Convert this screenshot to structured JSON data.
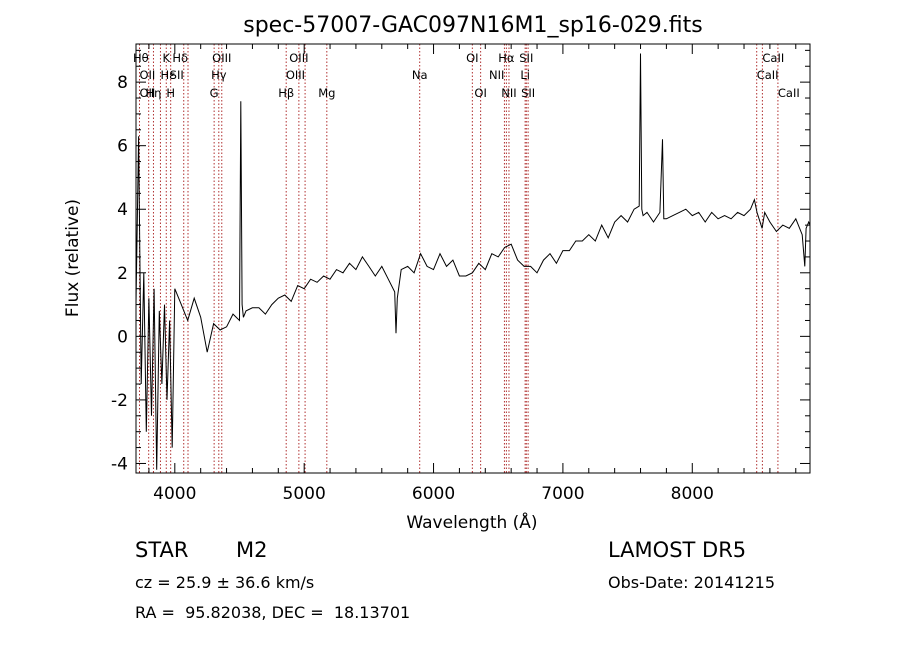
{
  "chart_data": {
    "type": "line",
    "title": "spec-57007-GAC097N16M1_sp16-029.fits",
    "xlabel": "Wavelength (Å)",
    "ylabel": "Flux (relative)",
    "xlim": [
      3700,
      8910
    ],
    "ylim": [
      -4.3,
      9.2
    ],
    "xticks": [
      4000,
      5000,
      6000,
      7000,
      8000
    ],
    "yticks": [
      -4,
      -2,
      0,
      2,
      4,
      6,
      8
    ],
    "grid": false,
    "series": [
      {
        "x": [
          3700,
          3720,
          3740,
          3760,
          3780,
          3800,
          3820,
          3840,
          3860,
          3880,
          3900,
          3920,
          3940,
          3960,
          3980,
          4000,
          4050,
          4100,
          4150,
          4200,
          4250,
          4300,
          4350,
          4400,
          4450,
          4500,
          4510,
          4520,
          4530,
          4550,
          4600,
          4650,
          4700,
          4750,
          4800,
          4850,
          4900,
          4950,
          5000,
          5050,
          5100,
          5150,
          5200,
          5250,
          5300,
          5350,
          5400,
          5450,
          5500,
          5550,
          5600,
          5650,
          5700,
          5710,
          5720,
          5750,
          5800,
          5850,
          5900,
          5950,
          6000,
          6050,
          6100,
          6150,
          6200,
          6250,
          6300,
          6350,
          6400,
          6450,
          6500,
          6550,
          6600,
          6650,
          6700,
          6750,
          6800,
          6850,
          6900,
          6950,
          7000,
          7050,
          7100,
          7150,
          7200,
          7250,
          7300,
          7350,
          7400,
          7450,
          7500,
          7550,
          7590,
          7600,
          7610,
          7620,
          7650,
          7700,
          7750,
          7770,
          7780,
          7800,
          7850,
          7900,
          7950,
          8000,
          8050,
          8100,
          8150,
          8200,
          8250,
          8300,
          8350,
          8400,
          8450,
          8480,
          8500,
          8540,
          8560,
          8600,
          8650,
          8700,
          8750,
          8800,
          8850,
          8870,
          8880,
          8900,
          8910
        ],
        "values": [
          1.0,
          6.3,
          -1.5,
          2.0,
          -3.0,
          1.2,
          -2.5,
          1.5,
          -4.2,
          0.8,
          -1.5,
          1.0,
          -2.0,
          0.5,
          -3.5,
          1.5,
          1.0,
          0.5,
          1.2,
          0.6,
          -0.5,
          0.4,
          0.2,
          0.3,
          0.7,
          0.5,
          7.4,
          1.0,
          0.6,
          0.8,
          0.9,
          0.9,
          0.7,
          1.0,
          1.2,
          1.3,
          1.1,
          1.6,
          1.5,
          1.8,
          1.7,
          1.9,
          1.8,
          2.1,
          2.0,
          2.3,
          2.1,
          2.5,
          2.2,
          1.9,
          2.2,
          1.8,
          1.4,
          0.1,
          1.2,
          2.1,
          2.2,
          2.0,
          2.6,
          2.2,
          2.1,
          2.6,
          2.2,
          2.4,
          1.9,
          1.9,
          2.0,
          2.3,
          2.1,
          2.6,
          2.5,
          2.8,
          2.9,
          2.4,
          2.2,
          2.2,
          2.0,
          2.4,
          2.6,
          2.3,
          2.7,
          2.7,
          3.0,
          3.0,
          3.2,
          3.0,
          3.5,
          3.1,
          3.6,
          3.8,
          3.6,
          4.0,
          4.1,
          8.9,
          4.0,
          3.8,
          3.9,
          3.6,
          3.9,
          6.2,
          3.7,
          3.7,
          3.8,
          3.9,
          4.0,
          3.8,
          3.9,
          3.6,
          3.9,
          3.7,
          3.8,
          3.7,
          3.9,
          3.8,
          4.0,
          4.3,
          3.9,
          3.4,
          3.9,
          3.6,
          3.3,
          3.5,
          3.4,
          3.7,
          3.2,
          2.2,
          3.4,
          3.6,
          3.5
        ]
      }
    ],
    "line_markers": [
      {
        "label": "Hθ",
        "wl": 3798,
        "row": 0,
        "ha": "end"
      },
      {
        "label": "K",
        "wl": 3934,
        "row": 0,
        "ha": "middle"
      },
      {
        "label": "Hδ",
        "wl": 4102,
        "row": 0,
        "ha": "end"
      },
      {
        "label": "OIII",
        "wl": 4363,
        "row": 0,
        "ha": "middle"
      },
      {
        "label": "OIII",
        "wl": 4959,
        "row": 0,
        "ha": "middle"
      },
      {
        "label": "OI",
        "wl": 6300,
        "row": 0,
        "ha": "middle"
      },
      {
        "label": "Hα",
        "wl": 6563,
        "row": 0,
        "ha": "middle"
      },
      {
        "label": "SII",
        "wl": 6717,
        "row": 0,
        "ha": "middle"
      },
      {
        "label": "CaII",
        "wl": 8542,
        "row": 0,
        "ha": "start"
      },
      {
        "label": "OII",
        "wl": 3727,
        "row": 1,
        "ha": "start"
      },
      {
        "label": "Hε",
        "wl": 3889,
        "row": 1,
        "ha": "start"
      },
      {
        "label": "SII",
        "wl": 4069,
        "row": 1,
        "ha": "end"
      },
      {
        "label": "Hγ",
        "wl": 4340,
        "row": 1,
        "ha": "middle"
      },
      {
        "label": "OIII",
        "wl": 5007,
        "row": 1,
        "ha": "end"
      },
      {
        "label": "NII",
        "wl": 6548,
        "row": 1,
        "ha": "end"
      },
      {
        "label": "Li",
        "wl": 6708,
        "row": 1,
        "ha": "middle"
      },
      {
        "label": "CaII",
        "wl": 8498,
        "row": 1,
        "ha": "start"
      },
      {
        "label": "OII",
        "wl": 3727,
        "row": 2,
        "ha": "start"
      },
      {
        "label": "Hη",
        "wl": 3835,
        "row": 2,
        "ha": "middle"
      },
      {
        "label": "H",
        "wl": 3968,
        "row": 2,
        "ha": "middle"
      },
      {
        "label": "G",
        "wl": 4304,
        "row": 2,
        "ha": "middle"
      },
      {
        "label": "Hβ",
        "wl": 4861,
        "row": 2,
        "ha": "middle"
      },
      {
        "label": "Mg",
        "wl": 5175,
        "row": 2,
        "ha": "middle"
      },
      {
        "label": "Na",
        "wl": 5893,
        "row": 1,
        "ha": "middle"
      },
      {
        "label": "OI",
        "wl": 6364,
        "row": 2,
        "ha": "middle"
      },
      {
        "label": "NII",
        "wl": 6583,
        "row": 2,
        "ha": "middle"
      },
      {
        "label": "SII",
        "wl": 6731,
        "row": 2,
        "ha": "middle"
      },
      {
        "label": "CaII",
        "wl": 8662,
        "row": 2,
        "ha": "start"
      }
    ],
    "colors": {
      "spectrum": "#000000",
      "line_markers": "#b03030",
      "frame": "#000000"
    }
  },
  "info": {
    "object_class": "STAR",
    "subclass": "M2",
    "survey": "LAMOST DR5",
    "cz_text": "cz = 25.9 ± 36.6 km/s",
    "obs_date": "Obs-Date: 20141215",
    "coords": "RA =  95.82038, DEC =  18.13701"
  }
}
